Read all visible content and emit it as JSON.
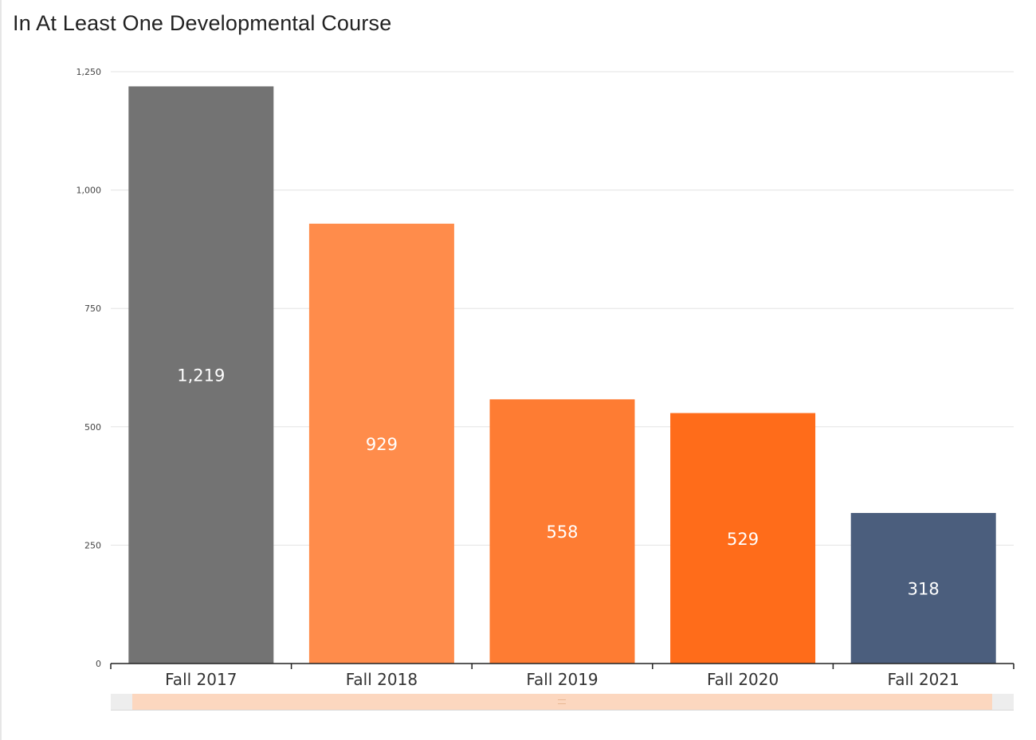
{
  "title": "In At Least One Developmental Course",
  "chart_data": {
    "type": "bar",
    "title": "In At Least One Developmental Course",
    "xlabel": "",
    "ylabel": "",
    "categories": [
      "Fall 2017",
      "Fall 2018",
      "Fall 2019",
      "Fall 2020",
      "Fall 2021"
    ],
    "values": [
      1219,
      929,
      558,
      529,
      318
    ],
    "value_labels": [
      "1,219",
      "929",
      "558",
      "529",
      "318"
    ],
    "bar_colors": [
      "#737373",
      "#ff8c4b",
      "#fe7c33",
      "#ff6c1a",
      "#4b5e7d"
    ],
    "ylim": [
      0,
      1250
    ],
    "yticks": [
      0,
      250,
      500,
      750,
      1000,
      1250
    ],
    "ytick_labels": [
      "0",
      "250",
      "500",
      "750",
      "1,000",
      "1,250"
    ],
    "grid": true,
    "legend": "none",
    "navigator": true
  },
  "colors": {
    "grid": "#e3e3e3",
    "axis": "#222222",
    "navigator_window": "#fcd7bf"
  }
}
